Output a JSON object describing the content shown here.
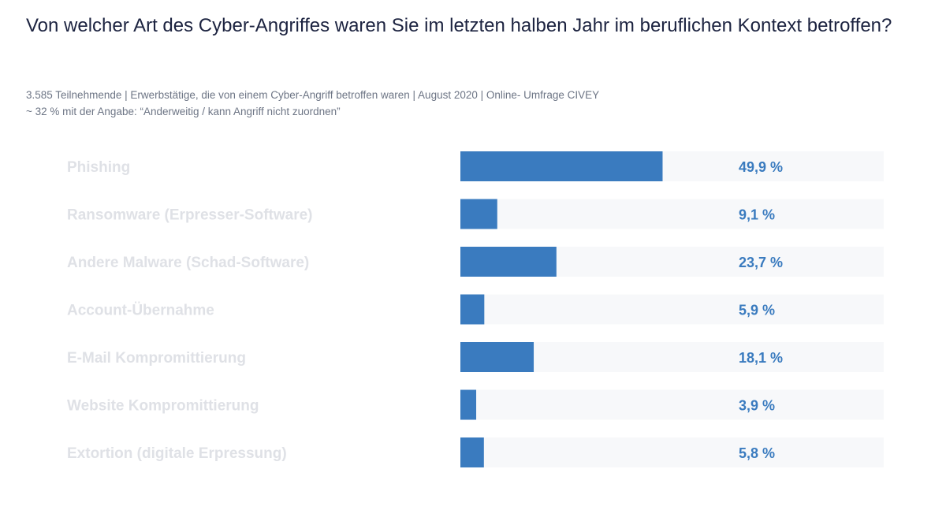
{
  "title": "Von welcher Art des Cyber-Angriffes waren Sie im letzten halben Jahr im beruflichen Kontext betroffen?",
  "subtitle_line1": "3.585 Teilnehmende | Erwerbstätige, die von einem Cyber-Angriff betroffen waren | August 2020 | Online- Umfrage CIVEY",
  "subtitle_line2": "~ 32 % mit der Angabe: “Anderweitig / kann Angriff nicht zuordnen”",
  "colors": {
    "bar": "#3a7bbf",
    "track": "#f7f8fa",
    "category_text": "#dfe1e6",
    "value_text": "#3a7bbf"
  },
  "chart_data": {
    "type": "bar",
    "orientation": "horizontal",
    "categories": [
      "Phishing",
      "Ransomware (Erpresser-Software)",
      "Andere Malware (Schad-Software)",
      "Account-Übernahme",
      "E-Mail Kompromittierung",
      "Website Kompromittierung",
      "Extortion (digitale Erpressung)"
    ],
    "values": [
      49.9,
      9.1,
      23.7,
      5.9,
      18.1,
      3.9,
      5.8
    ],
    "value_labels": [
      "49,9 %",
      "9,1 %",
      "23,7 %",
      "5,9 %",
      "18,1 %",
      "3,9 %",
      "5,8 %"
    ],
    "xlim": [
      0,
      100
    ],
    "unit": "%",
    "grid": false,
    "legend": "none"
  }
}
